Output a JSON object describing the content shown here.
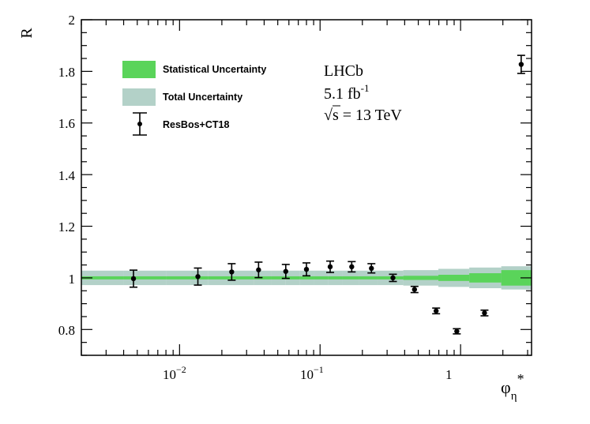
{
  "chart_data": {
    "type": "scatter",
    "xlabel": "φ",
    "xlabel_subscript": "η",
    "xlabel_superscript": "*",
    "ylabel": "R",
    "xscale": "log",
    "xlim": [
      0.002,
      3.2
    ],
    "ylim": [
      0.7,
      2.0
    ],
    "y_ticks": [
      0.8,
      1.0,
      1.2,
      1.4,
      1.6,
      1.8,
      2.0
    ],
    "y_tick_labels": [
      "0.8",
      "1",
      "1.2",
      "1.4",
      "1.6",
      "1.8",
      "2"
    ],
    "x_ticks": [
      0.01,
      0.1,
      1
    ],
    "x_tick_base": [
      "10",
      "10",
      "1"
    ],
    "x_tick_exp": [
      "−2",
      "−1",
      ""
    ],
    "grid": false,
    "legend_position": "top-left",
    "legend": [
      {
        "label": "Statistical Uncertainty",
        "color": "#5ad45a"
      },
      {
        "label": "Total Uncertainty",
        "color": "#b3d1c8"
      },
      {
        "label": "ResBos+CT18",
        "color": "#000000"
      }
    ],
    "annotation": {
      "experiment": "LHCb",
      "lumi_value": "5.1 fb",
      "lumi_exp": "-1",
      "energy_sqrt": "√",
      "energy_rest": "s = 13 TeV"
    },
    "bands": {
      "x_edges": [
        0.002,
        0.004,
        0.008,
        0.012,
        0.016,
        0.024,
        0.034,
        0.045,
        0.057,
        0.072,
        0.091,
        0.114,
        0.145,
        0.189,
        0.258,
        0.391,
        0.695,
        1.153,
        1.947,
        3.2
      ],
      "stat_half_width": [
        0.006,
        0.006,
        0.006,
        0.006,
        0.006,
        0.006,
        0.006,
        0.006,
        0.006,
        0.006,
        0.006,
        0.006,
        0.006,
        0.006,
        0.006,
        0.008,
        0.012,
        0.018,
        0.03
      ],
      "total_half_width": [
        0.028,
        0.028,
        0.028,
        0.028,
        0.028,
        0.028,
        0.028,
        0.028,
        0.028,
        0.028,
        0.028,
        0.028,
        0.028,
        0.028,
        0.028,
        0.03,
        0.035,
        0.04,
        0.045
      ]
    },
    "series": [
      {
        "name": "ResBos+CT18",
        "x": [
          0.0047,
          0.0135,
          0.0235,
          0.0365,
          0.057,
          0.08,
          0.118,
          0.168,
          0.232,
          0.33,
          0.47,
          0.67,
          0.94,
          1.48,
          2.7
        ],
        "y": [
          0.997,
          1.005,
          1.023,
          1.031,
          1.025,
          1.033,
          1.043,
          1.043,
          1.037,
          1.0,
          0.955,
          0.872,
          0.793,
          0.864,
          1.827
        ],
        "err": [
          0.033,
          0.033,
          0.032,
          0.03,
          0.027,
          0.025,
          0.022,
          0.02,
          0.018,
          0.014,
          0.012,
          0.011,
          0.01,
          0.011,
          0.035
        ]
      }
    ]
  }
}
